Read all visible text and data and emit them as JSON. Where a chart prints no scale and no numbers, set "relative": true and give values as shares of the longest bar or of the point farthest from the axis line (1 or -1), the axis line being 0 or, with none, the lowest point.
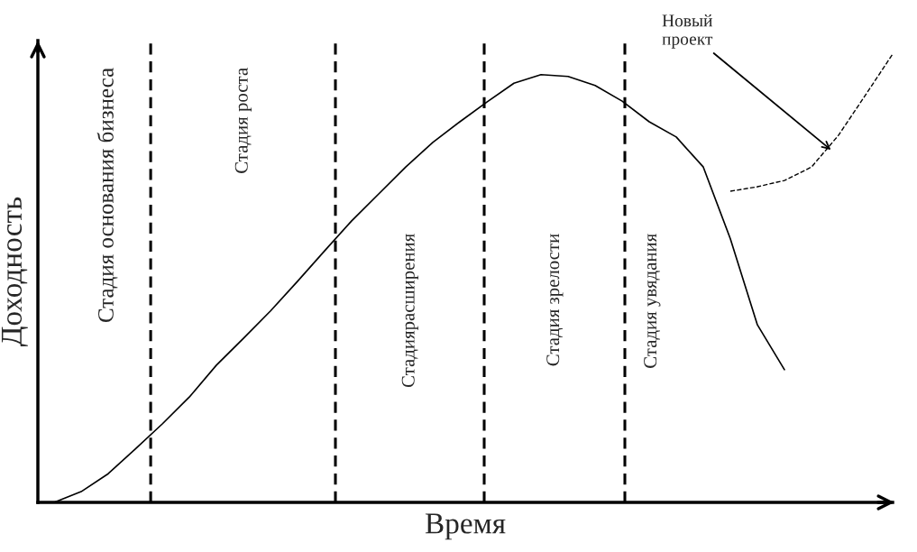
{
  "chart_data": {
    "type": "line",
    "relative": true,
    "xlabel": "Время",
    "ylabel": "Доходность",
    "categories": [
      null,
      null,
      null,
      null,
      null,
      null,
      null,
      null,
      null,
      null,
      null,
      null,
      null,
      null,
      null,
      null,
      null,
      null,
      null,
      null,
      null,
      null,
      null,
      null,
      null,
      null,
      null,
      null,
      null,
      null,
      null,
      null
    ],
    "series": [
      {
        "color": "#000000",
        "line_style": "solid",
        "values": [
          0,
          0.024,
          0.064,
          0.119,
          0.175,
          0.235,
          0.306,
          0.366,
          0.427,
          0.493,
          0.561,
          0.628,
          0.688,
          0.748,
          0.803,
          0.849,
          0.893,
          0.935,
          0.954,
          0.95,
          0.93,
          0.895,
          0.849,
          0.815,
          0.748,
          0.588,
          0.396,
          0.296,
          null,
          null,
          null,
          null
        ]
      },
      {
        "color": "#000000",
        "line_style": "dashed",
        "values": [
          null,
          null,
          null,
          null,
          null,
          null,
          null,
          null,
          null,
          null,
          null,
          null,
          null,
          null,
          null,
          null,
          null,
          null,
          null,
          null,
          null,
          null,
          null,
          null,
          null,
          0.694,
          0.704,
          0.718,
          0.748,
          0.819,
          0.909,
          1.0
        ]
      }
    ],
    "annotations": [
      "Стадия основания бизнеса",
      "Стадия роста",
      "Стадиярасширения",
      "Стадия зрелости",
      "Стадия увядания",
      "Новый\nпроект"
    ],
    "legend": false,
    "marker": "none"
  }
}
